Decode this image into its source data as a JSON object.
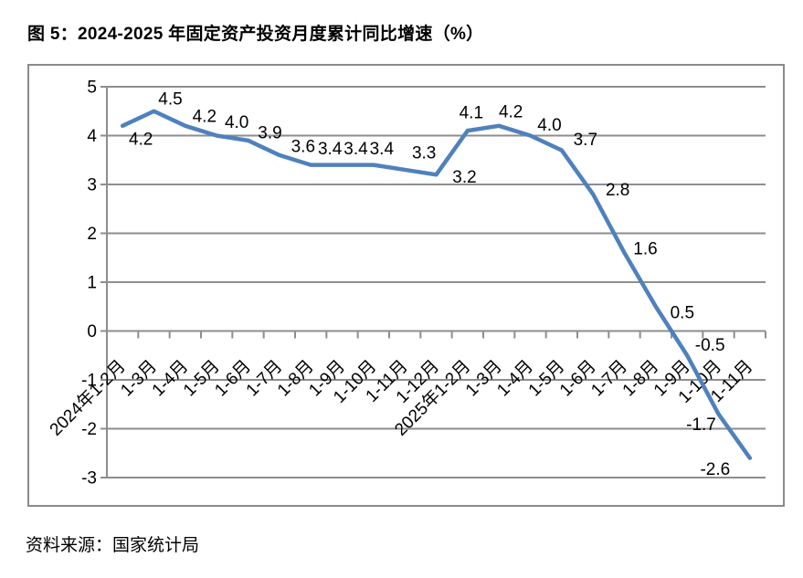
{
  "title": "图 5：2024-2025 年固定资产投资月度累计同比增速（%）",
  "source": "资料来源：国家统计局",
  "chart_data": {
    "type": "line",
    "title": "图 5：2024-2025 年固定资产投资月度累计同比增速（%）",
    "categories": [
      "2024年1-2月",
      "1-3月",
      "1-4月",
      "1-5月",
      "1-6月",
      "1-7月",
      "1-8月",
      "1-9月",
      "1-10月",
      "1-11月",
      "1-12月",
      "2025年1-2月",
      "1-3月",
      "1-4月",
      "1-5月",
      "1-6月",
      "1-7月",
      "1-8月",
      "1-9月",
      "1-10月",
      "1-11月"
    ],
    "values": [
      4.2,
      4.5,
      4.2,
      4.0,
      3.9,
      3.6,
      3.4,
      3.4,
      3.4,
      3.3,
      3.2,
      4.1,
      4.2,
      4.0,
      3.7,
      2.8,
      1.6,
      0.5,
      -0.5,
      -1.7,
      -2.6
    ],
    "point_labels": [
      "4.2",
      "4.5",
      "4.2",
      "4.0",
      "3.9",
      "3.6",
      "3.4",
      "3.4",
      "3.4",
      "3.3",
      "3.2",
      "4.1",
      "4.2",
      "4.0",
      "3.7",
      "2.8",
      "1.6",
      "0.5",
      "-0.5",
      "-1.7",
      "-2.6"
    ],
    "xlabel": "",
    "ylabel": "",
    "ylim": [
      -3,
      5
    ],
    "y_ticks": [
      5,
      4,
      3,
      2,
      1,
      0,
      -1,
      -2,
      -3
    ],
    "grid": true,
    "legend": "none",
    "line_color": "#4F81BD",
    "grid_color": "#8e8e8e",
    "axis_color": "#8a8a8a",
    "label_color": "#000000"
  }
}
